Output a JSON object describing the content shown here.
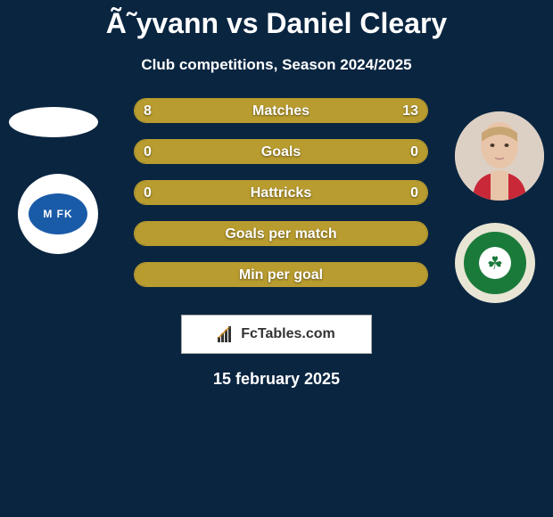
{
  "title": "Ã˜yvann vs Daniel Cleary",
  "subtitle": "Club competitions, Season 2024/2025",
  "bars": [
    {
      "label": "Matches",
      "left": "8",
      "right": "13",
      "left_pct": 38,
      "right_pct": 62,
      "show_vals": true,
      "split": true
    },
    {
      "label": "Goals",
      "left": "0",
      "right": "0",
      "left_pct": 100,
      "right_pct": 0,
      "show_vals": true,
      "split": false
    },
    {
      "label": "Hattricks",
      "left": "0",
      "right": "0",
      "left_pct": 100,
      "right_pct": 0,
      "show_vals": true,
      "split": false
    },
    {
      "label": "Goals per match",
      "left": "",
      "right": "",
      "left_pct": 100,
      "right_pct": 0,
      "show_vals": false,
      "split": false
    },
    {
      "label": "Min per goal",
      "left": "",
      "right": "",
      "left_pct": 100,
      "right_pct": 0,
      "show_vals": false,
      "split": false
    }
  ],
  "club_left_text": "M FK",
  "footer_text": "FcTables.com",
  "date": "15 february 2025",
  "colors": {
    "background": "#0a2540",
    "bar_fill": "#b89c2f",
    "bar_border": "#b89c2f",
    "text": "#ffffff"
  }
}
